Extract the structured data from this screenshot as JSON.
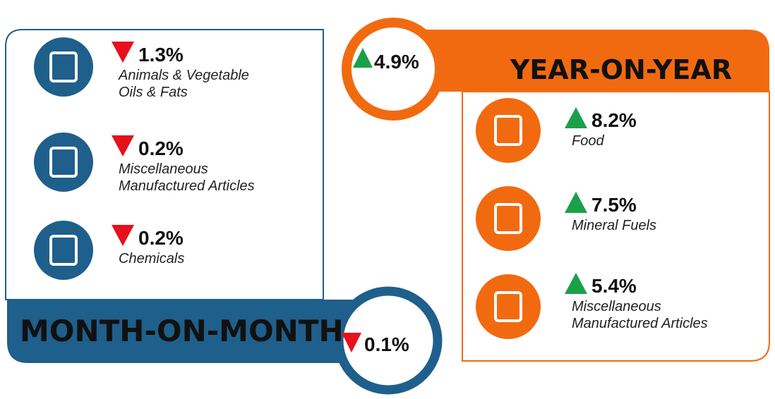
{
  "month_on_month": {
    "title": "MONTH-ON-MONTH",
    "value": "0.1%",
    "items": [
      {
        "value": "1.3%",
        "label": [
          "Animals & Vegetable",
          "Oils & Fats"
        ]
      },
      {
        "value": "0.2%",
        "label": [
          "Miscellaneous",
          "Manufactured Articles"
        ]
      },
      {
        "value": "0.2%",
        "label": [
          "Chemicals"
        ]
      }
    ]
  },
  "year_on_year": {
    "title": "YEAR-ON-YEAR",
    "value": "4.9%",
    "items": [
      {
        "value": "8.2%",
        "label": [
          "Food"
        ]
      },
      {
        "value": "7.5%",
        "label": [
          "Mineral Fuels"
        ]
      },
      {
        "value": "5.4%",
        "label": [
          "Miscellaneous",
          "Manufactured Articles"
        ]
      }
    ]
  }
}
